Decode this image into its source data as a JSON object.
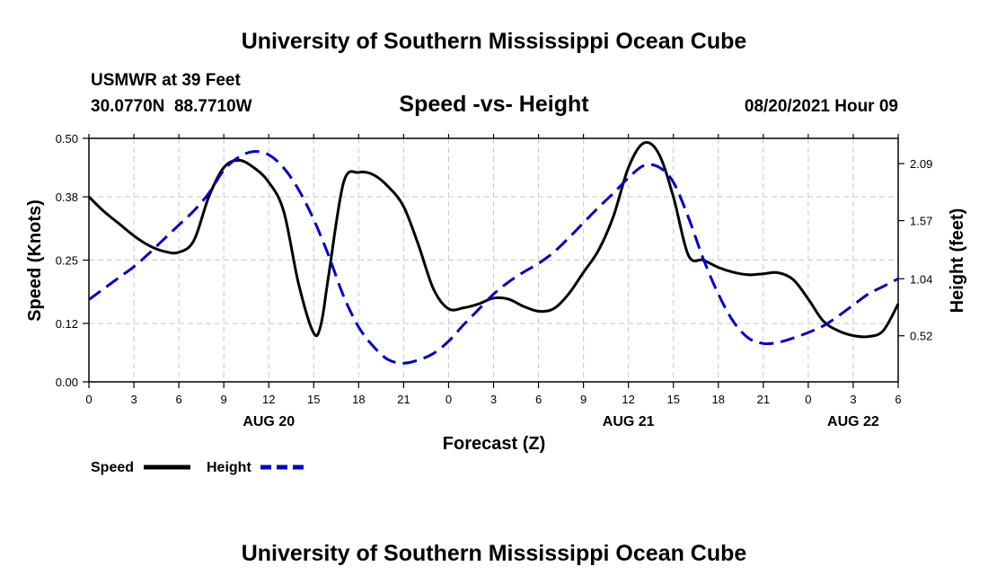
{
  "header": {
    "title": "University of Southern Mississippi Ocean Cube",
    "station": "USMWR at 39 Feet",
    "coords": "30.0770N  88.7710W",
    "subtitle": "Speed -vs- Height",
    "timestamp": "08/20/2021 Hour 09"
  },
  "footer": {
    "title": "University of Southern Mississippi Ocean Cube"
  },
  "chart_data": {
    "type": "line",
    "xlabel": "Forecast (Z)",
    "ylabel_left": "Speed (Knots)",
    "ylabel_right": "Height (feet)",
    "x_range": [
      0,
      54
    ],
    "x_ticks": [
      0,
      3,
      6,
      9,
      12,
      15,
      18,
      21,
      24,
      27,
      30,
      33,
      36,
      39,
      42,
      45,
      48,
      51,
      54
    ],
    "x_tick_labels": [
      "0",
      "3",
      "6",
      "9",
      "12",
      "15",
      "18",
      "21",
      "0",
      "3",
      "6",
      "9",
      "12",
      "15",
      "18",
      "21",
      "0",
      "3",
      "6"
    ],
    "date_labels": [
      {
        "x": 12,
        "label": "AUG 20"
      },
      {
        "x": 36,
        "label": "AUG 21"
      },
      {
        "x": 51,
        "label": "AUG 22"
      }
    ],
    "y_left": {
      "range": [
        0,
        0.5
      ],
      "ticks": [
        0.0,
        0.12,
        0.25,
        0.38,
        0.5
      ],
      "tick_labels": [
        "0.00",
        "0.12",
        "0.25",
        "0.38",
        "0.50"
      ]
    },
    "y_right": {
      "range": [
        0.1,
        2.32
      ],
      "ticks": [
        0.52,
        1.04,
        1.57,
        2.09
      ],
      "tick_labels": [
        "0.52",
        "1.04",
        "1.57",
        "2.09"
      ]
    },
    "grid": true,
    "legend": [
      "Speed",
      "Height"
    ],
    "series": [
      {
        "name": "Speed",
        "axis": "left",
        "color": "#000000",
        "style": "solid",
        "x": [
          0,
          1,
          2,
          3,
          4,
          5,
          6,
          7,
          8,
          9,
          10,
          11,
          12,
          13,
          14,
          15,
          15.5,
          16,
          17,
          18,
          19,
          20,
          21,
          22,
          23,
          24,
          25,
          26,
          27,
          28,
          29,
          30,
          31,
          32,
          33,
          34,
          35,
          36,
          37,
          38,
          39,
          40,
          41,
          42,
          43,
          44,
          45,
          46,
          47,
          48,
          49,
          50,
          51,
          52,
          53,
          54
        ],
        "values": [
          0.38,
          0.35,
          0.325,
          0.3,
          0.28,
          0.268,
          0.266,
          0.29,
          0.38,
          0.44,
          0.455,
          0.44,
          0.41,
          0.35,
          0.2,
          0.1,
          0.12,
          0.22,
          0.41,
          0.43,
          0.425,
          0.4,
          0.36,
          0.28,
          0.19,
          0.15,
          0.152,
          0.16,
          0.172,
          0.17,
          0.155,
          0.145,
          0.15,
          0.18,
          0.225,
          0.27,
          0.34,
          0.44,
          0.49,
          0.47,
          0.38,
          0.26,
          0.25,
          0.235,
          0.225,
          0.22,
          0.222,
          0.224,
          0.21,
          0.17,
          0.125,
          0.105,
          0.095,
          0.093,
          0.105,
          0.16
        ]
      },
      {
        "name": "Height",
        "axis": "right",
        "color": "#0000c8",
        "style": "dashed",
        "x": [
          0,
          1,
          2,
          3,
          4,
          5,
          6,
          7,
          8,
          9,
          10,
          11,
          12,
          13,
          14,
          15,
          16,
          17,
          18,
          19,
          20,
          21,
          22,
          23,
          24,
          25,
          26,
          27,
          28,
          29,
          30,
          31,
          32,
          33,
          34,
          35,
          36,
          37,
          38,
          39,
          40,
          41,
          42,
          43,
          44,
          45,
          46,
          47,
          48,
          49,
          50,
          51,
          52,
          53,
          54
        ],
        "values": [
          0.85,
          0.95,
          1.05,
          1.15,
          1.27,
          1.4,
          1.53,
          1.66,
          1.82,
          2.03,
          2.15,
          2.2,
          2.17,
          2.05,
          1.85,
          1.58,
          1.25,
          0.88,
          0.6,
          0.42,
          0.3,
          0.27,
          0.3,
          0.36,
          0.47,
          0.62,
          0.76,
          0.9,
          1.01,
          1.1,
          1.18,
          1.28,
          1.41,
          1.55,
          1.69,
          1.82,
          1.96,
          2.07,
          2.06,
          1.92,
          1.6,
          1.22,
          0.9,
          0.65,
          0.5,
          0.45,
          0.46,
          0.5,
          0.55,
          0.61,
          0.7,
          0.8,
          0.9,
          0.97,
          1.04
        ]
      }
    ]
  }
}
